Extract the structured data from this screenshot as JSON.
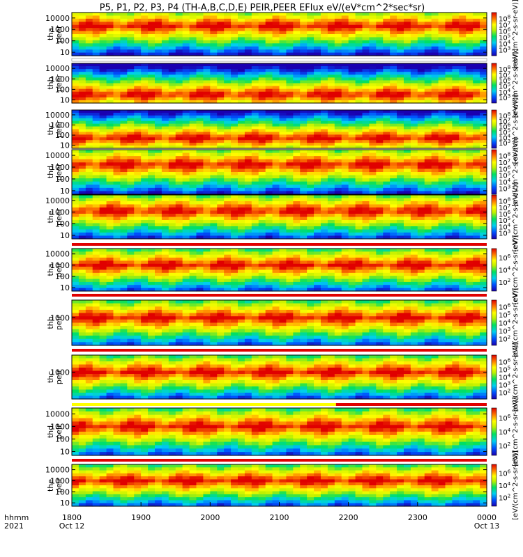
{
  "chart_data": {
    "type": "heatmap",
    "title": "P5, P1, P2, P3, P4 (TH-A,B,C,D,E) PEIR,PEER EFlux eV/(eV*cm^2*sec*sr)",
    "x_axis": {
      "row1_label": "hhmm",
      "row2_label": "2021",
      "ticks": [
        "1800",
        "1900",
        "2000",
        "2100",
        "2200",
        "2300",
        "0000"
      ],
      "tick_hours": [
        18,
        19,
        20,
        21,
        22,
        23,
        24
      ],
      "date_left": "Oct 12",
      "date_right": "Oct 13",
      "range_hours": [
        18,
        24
      ]
    },
    "colorbar_unit": "[eV/(cm^2-s-sr-eV)]",
    "log_scale": true,
    "panels": [
      {
        "name": "tha_peer",
        "ylabel": [
          "tha",
          "peer"
        ],
        "yticks": [
          "10",
          "100",
          "1000",
          "10000"
        ],
        "ylim": [
          5,
          30000
        ],
        "cb_ticks": [
          "10^3",
          "10^4",
          "10^5",
          "10^6",
          "10^7",
          "10^8"
        ],
        "state_bar": [
          "white"
        ],
        "band_center_decade": 3.3
      },
      {
        "name": "thb_peer",
        "ylabel": [
          "thb",
          "peer"
        ],
        "yticks": [
          "10",
          "100",
          "1000",
          "10000"
        ],
        "ylim": [
          5,
          30000
        ],
        "cb_ticks": [
          "10^3",
          "10^4",
          "10^5",
          "10^6",
          "10^7",
          "10^8"
        ],
        "state_bar": [
          "white"
        ],
        "band_center_decade": 1.5
      },
      {
        "name": "thc_peer",
        "ylabel": [
          "thc",
          "peer"
        ],
        "yticks": [
          "10",
          "100",
          "1000",
          "10000"
        ],
        "ylim": [
          5,
          30000
        ],
        "cb_ticks": [
          "10^3",
          "10^4",
          "10^5",
          "10^6",
          "10^7",
          "10^8"
        ],
        "state_bar": [
          "white"
        ],
        "band_center_decade": 1.7
      },
      {
        "name": "thd_peer",
        "ylabel": [
          "thd",
          "peer"
        ],
        "yticks": [
          "10",
          "100",
          "1000",
          "10000"
        ],
        "ylim": [
          5,
          30000
        ],
        "cb_ticks": [
          "10^3",
          "10^4",
          "10^5",
          "10^6",
          "10^7",
          "10^8"
        ],
        "state_bar": [
          "white"
        ],
        "band_center_decade": 3.2
      },
      {
        "name": "the_peer",
        "ylabel": [
          "the",
          "peer"
        ],
        "yticks": [
          "10",
          "100",
          "1000",
          "10000"
        ],
        "ylim": [
          5,
          30000
        ],
        "cb_ticks": [
          "10^3",
          "10^4",
          "10^5",
          "10^6",
          "10^7",
          "10^8"
        ],
        "state_bar": [
          "white"
        ],
        "band_center_decade": 3.1
      },
      {
        "name": "tha_peir",
        "ylabel": [
          "tha",
          "peir"
        ],
        "yticks": [
          "10",
          "100",
          "1000",
          "10000"
        ],
        "ylim": [
          5,
          30000
        ],
        "cb_ticks": [
          "10^2",
          "10^4",
          "10^6"
        ],
        "state_bar": [
          "red"
        ],
        "band_center_decade": 3.0
      },
      {
        "name": "thb_peir",
        "ylabel": [
          "thb",
          "peir"
        ],
        "yticks": [
          "1000"
        ],
        "ylim": [
          5,
          30000
        ],
        "cb_ticks": [
          "10^2",
          "10^3",
          "10^4",
          "10^5",
          "10^6"
        ],
        "state_bar": [
          "red"
        ],
        "band_center_decade": 3.0
      },
      {
        "name": "thc_peir",
        "ylabel": [
          "thc",
          "peir"
        ],
        "yticks": [
          "1000"
        ],
        "ylim": [
          5,
          30000
        ],
        "cb_ticks": [
          "10^2",
          "10^3",
          "10^4",
          "10^5",
          "10^6"
        ],
        "state_bar": [
          "red"
        ],
        "band_center_decade": 3.0
      },
      {
        "name": "thd_peir",
        "ylabel": [
          "thd",
          "peir"
        ],
        "yticks": [
          "10",
          "100",
          "1000",
          "10000"
        ],
        "ylim": [
          5,
          30000
        ],
        "cb_ticks": [
          "10^2",
          "10^4",
          "10^6"
        ],
        "state_bar": [
          "yellow",
          "red"
        ],
        "band_center_decade": 3.0
      },
      {
        "name": "the_peir",
        "ylabel": [
          "the",
          "peir"
        ],
        "yticks": [
          "10",
          "100",
          "1000",
          "10000"
        ],
        "ylim": [
          5,
          30000
        ],
        "cb_ticks": [
          "10^2",
          "10^4",
          "10^6"
        ],
        "state_bar": [
          "red"
        ],
        "band_center_decade": 3.0
      }
    ]
  }
}
